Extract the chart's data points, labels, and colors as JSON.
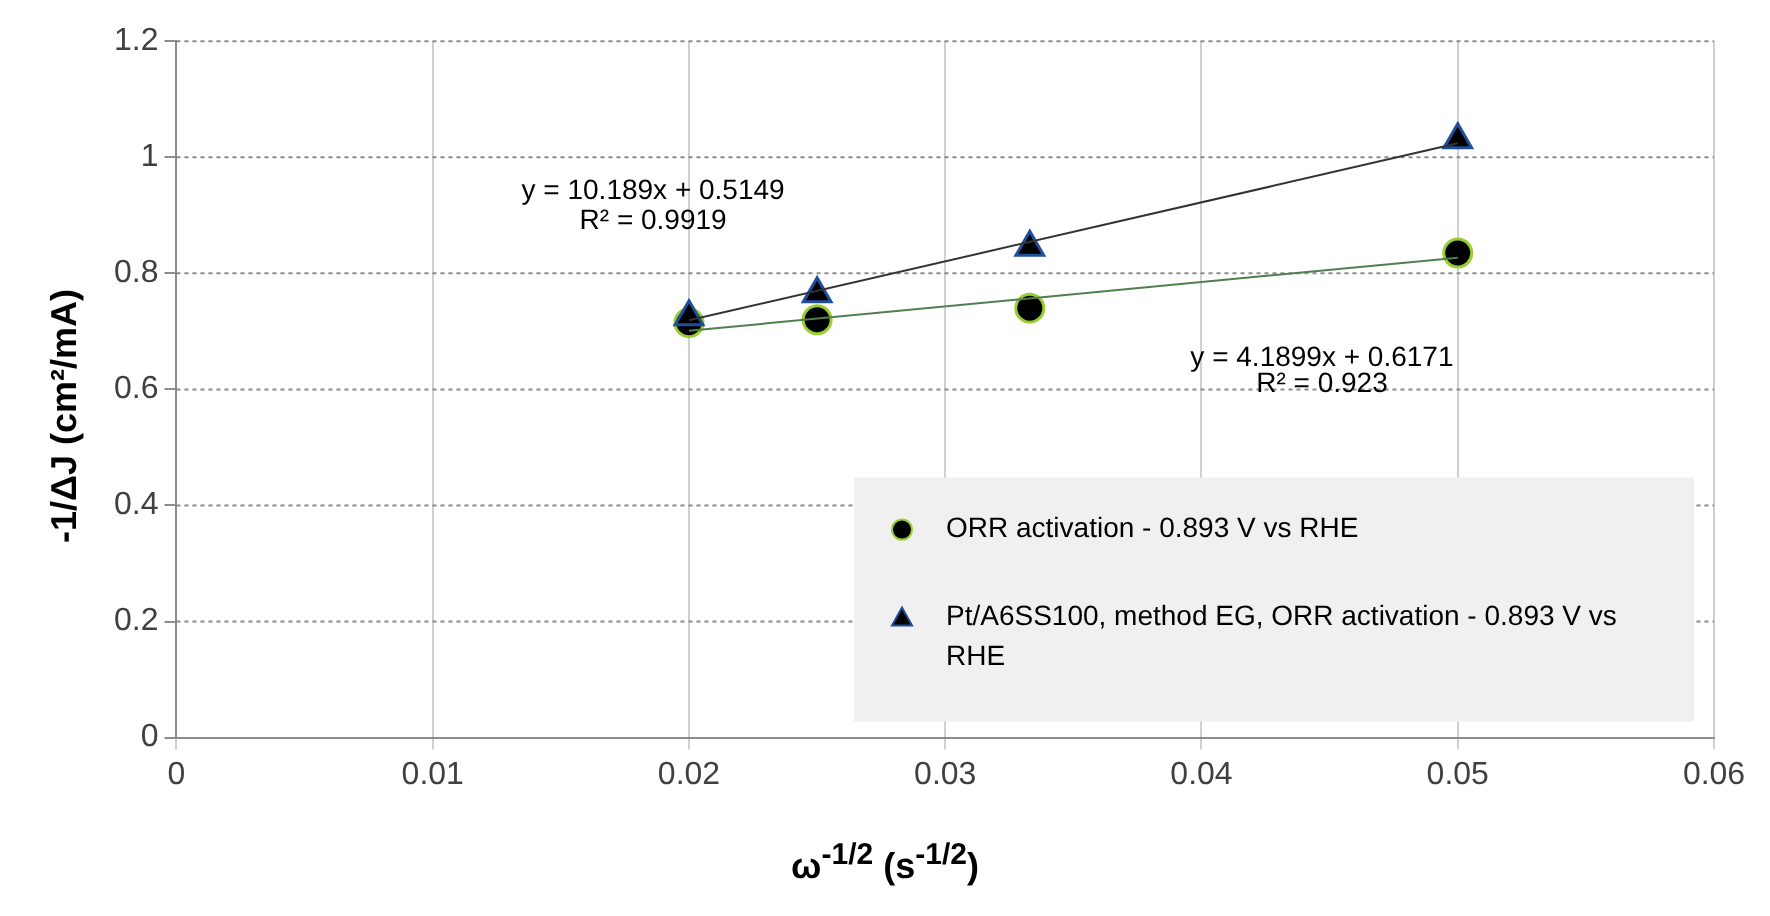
{
  "chart_data": {
    "type": "scatter",
    "xlabel": "ω$^{-1/2}$ (s$^{-1/2}$)",
    "ylabel": "-1/ΔJ (cm²/mA)",
    "xlim": [
      0,
      0.06
    ],
    "xticks": [
      0,
      0.01,
      0.02,
      0.03,
      0.04,
      0.05,
      0.06
    ],
    "ylim": [
      0,
      1.2
    ],
    "yticks": [
      0,
      0.2,
      0.4,
      0.6,
      0.8,
      1,
      1.2
    ],
    "grid": true,
    "legend": "bottom right",
    "series": [
      {
        "name": "ORR activation - 0.893 V vs RHE",
        "marker": "circle",
        "color": "#000000",
        "x": [
          0.02,
          0.025,
          0.0333,
          0.05
        ],
        "values": [
          0.715,
          0.72,
          0.74,
          0.835
        ]
      },
      {
        "name": "Pt/A6SS100, method EG, ORR activation - 0.893 V vs RHE",
        "marker": "triangle",
        "color": "#000000",
        "x": [
          0.02,
          0.025,
          0.0333,
          0.05
        ],
        "values": [
          0.725,
          0.765,
          0.845,
          1.03
        ]
      },
      {
        "type": "line",
        "marker": "none",
        "color": "#4f7f4f",
        "x": [
          0.02,
          0.05
        ],
        "values": [
          0.701,
          0.827
        ]
      },
      {
        "type": "line",
        "marker": "none",
        "color": "#333333",
        "x": [
          0.02,
          0.05
        ],
        "values": [
          0.719,
          1.024
        ]
      }
    ],
    "annotations": [
      "y = 10.189x + 0.5149",
      "R² = 0.9919",
      "y = 4.1899x + 0.6171",
      "R² = 0.923"
    ]
  }
}
